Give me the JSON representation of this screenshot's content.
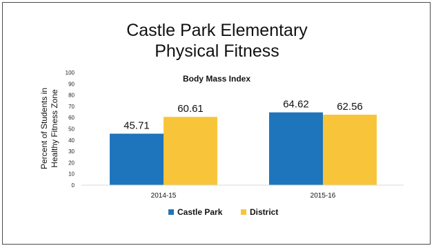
{
  "chart_data": {
    "type": "bar",
    "title": [
      "Castle Park Elementary",
      "Physical Fitness"
    ],
    "subtitle": "Body Mass Index",
    "ylabel": [
      "Percent of Students in",
      "Healthy Fitness Zone"
    ],
    "xlabel": "",
    "ylim": [
      0,
      100
    ],
    "yticks": [
      0,
      10,
      20,
      30,
      40,
      50,
      60,
      70,
      80,
      90,
      100
    ],
    "categories": [
      "2014-15",
      "2015-16"
    ],
    "series": [
      {
        "name": "Castle Park",
        "values": [
          45.71,
          64.62
        ],
        "labels": [
          "45.71",
          "64.62"
        ],
        "color": "#1f75bc"
      },
      {
        "name": "District",
        "values": [
          60.61,
          62.56
        ],
        "labels": [
          "60.61",
          "62.56"
        ],
        "color": "#f8c53a"
      }
    ],
    "grid": false,
    "legend": "bottom-center"
  }
}
